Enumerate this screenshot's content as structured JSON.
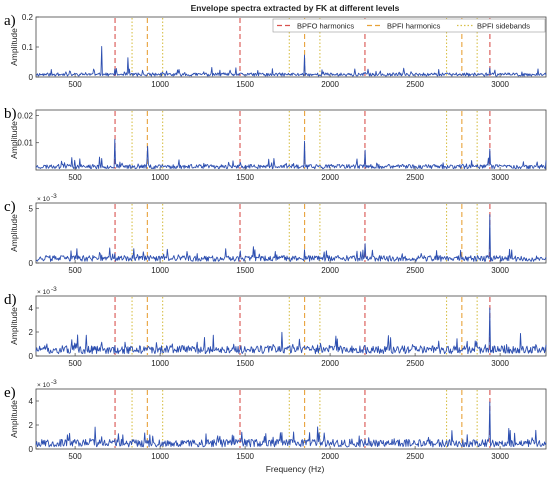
{
  "chart_data": {
    "title": "Envelope spectra extracted by FK at different levels",
    "xlabel": "Frequency (Hz)",
    "xlim": [
      270,
      3270
    ],
    "xticks": [
      500,
      1000,
      1500,
      2000,
      2500,
      3000
    ],
    "legend": {
      "placement": "top-right",
      "entries": [
        {
          "label": "BPFO harmonics",
          "color": "#d9534f",
          "style": "dashed"
        },
        {
          "label": "BPFI harmonics",
          "color": "#e8a23a",
          "style": "dashed"
        },
        {
          "label": "BPFI sidebands",
          "color": "#d8c04a",
          "style": "dotted"
        }
      ]
    },
    "markers": {
      "bpfo_harmonics": [
        735,
        1470,
        2205,
        2940
      ],
      "bpfi_harmonics": [
        925,
        1850,
        2775
      ],
      "bpfi_sidebands": [
        835,
        1015,
        1760,
        1940,
        2685,
        2865
      ]
    },
    "series_color": "#2d4fb0",
    "panels": [
      {
        "letter": "a)",
        "type": "line",
        "ylabel": "Amplitude",
        "exponent": "",
        "ylim": [
          0,
          0.2
        ],
        "yticks": [
          0,
          0.1,
          0.2
        ],
        "ytick_labels": [
          "0",
          "0.1",
          "0.2"
        ],
        "noise_level": 0.012,
        "seed": 11,
        "peaks": [
          [
            655,
            0.168
          ],
          [
            735,
            0.05
          ],
          [
            810,
            0.085
          ],
          [
            895,
            0.045
          ],
          [
            1110,
            0.04
          ],
          [
            1255,
            0.035
          ],
          [
            1850,
            0.09
          ],
          [
            2205,
            0.02
          ],
          [
            2940,
            0.035
          ],
          [
            470,
            0.04
          ],
          [
            560,
            0.035
          ]
        ]
      },
      {
        "letter": "b)",
        "type": "line",
        "ylabel": "Amplitude",
        "exponent": "",
        "ylim": [
          0,
          0.022
        ],
        "yticks": [
          0.01,
          0.02
        ],
        "ytick_labels": [
          "0.01",
          "0.02"
        ],
        "noise_level": 0.0018,
        "seed": 23,
        "peaks": [
          [
            735,
            0.021
          ],
          [
            925,
            0.018
          ],
          [
            1850,
            0.013
          ],
          [
            2205,
            0.009
          ],
          [
            2940,
            0.009
          ],
          [
            655,
            0.007
          ],
          [
            1110,
            0.006
          ],
          [
            1470,
            0.006
          ],
          [
            480,
            0.005
          ]
        ]
      },
      {
        "letter": "c)",
        "type": "line",
        "ylabel": "Amplitude",
        "exponent": "× 10^-3",
        "ylim": [
          0,
          5.5
        ],
        "yticks": [
          0,
          5
        ],
        "ytick_labels": [
          "0",
          "5"
        ],
        "noise_level": 0.6,
        "seed": 37,
        "peaks": [
          [
            2940,
            5.2
          ],
          [
            1470,
            2.4
          ],
          [
            2205,
            2.2
          ],
          [
            735,
            1.6
          ],
          [
            1850,
            1.5
          ],
          [
            925,
            1.0
          ],
          [
            655,
            1.2
          ]
        ]
      },
      {
        "letter": "d)",
        "type": "line",
        "ylabel": "Amplitude",
        "exponent": "× 10^-3",
        "ylim": [
          0,
          5
        ],
        "yticks": [
          0,
          2,
          4
        ],
        "ytick_labels": [
          "0",
          "2",
          "4"
        ],
        "noise_level": 0.75,
        "seed": 51,
        "peaks": [
          [
            2940,
            4.7
          ],
          [
            735,
            1.6
          ],
          [
            655,
            1.9
          ],
          [
            925,
            1.4
          ],
          [
            1470,
            1.2
          ],
          [
            2205,
            1.1
          ],
          [
            1850,
            1.0
          ],
          [
            480,
            1.5
          ]
        ]
      },
      {
        "letter": "e)",
        "type": "line",
        "ylabel": "Amplitude",
        "exponent": "× 10^-3",
        "ylim": [
          0,
          5
        ],
        "yticks": [
          0,
          2,
          4
        ],
        "ytick_labels": [
          "0",
          "2",
          "4"
        ],
        "noise_level": 0.7,
        "seed": 67,
        "peaks": [
          [
            2940,
            4.6
          ],
          [
            735,
            1.5
          ],
          [
            655,
            1.7
          ],
          [
            910,
            1.6
          ],
          [
            1470,
            1.0
          ],
          [
            2205,
            1.0
          ],
          [
            1850,
            0.9
          ],
          [
            500,
            1.3
          ]
        ]
      }
    ]
  }
}
